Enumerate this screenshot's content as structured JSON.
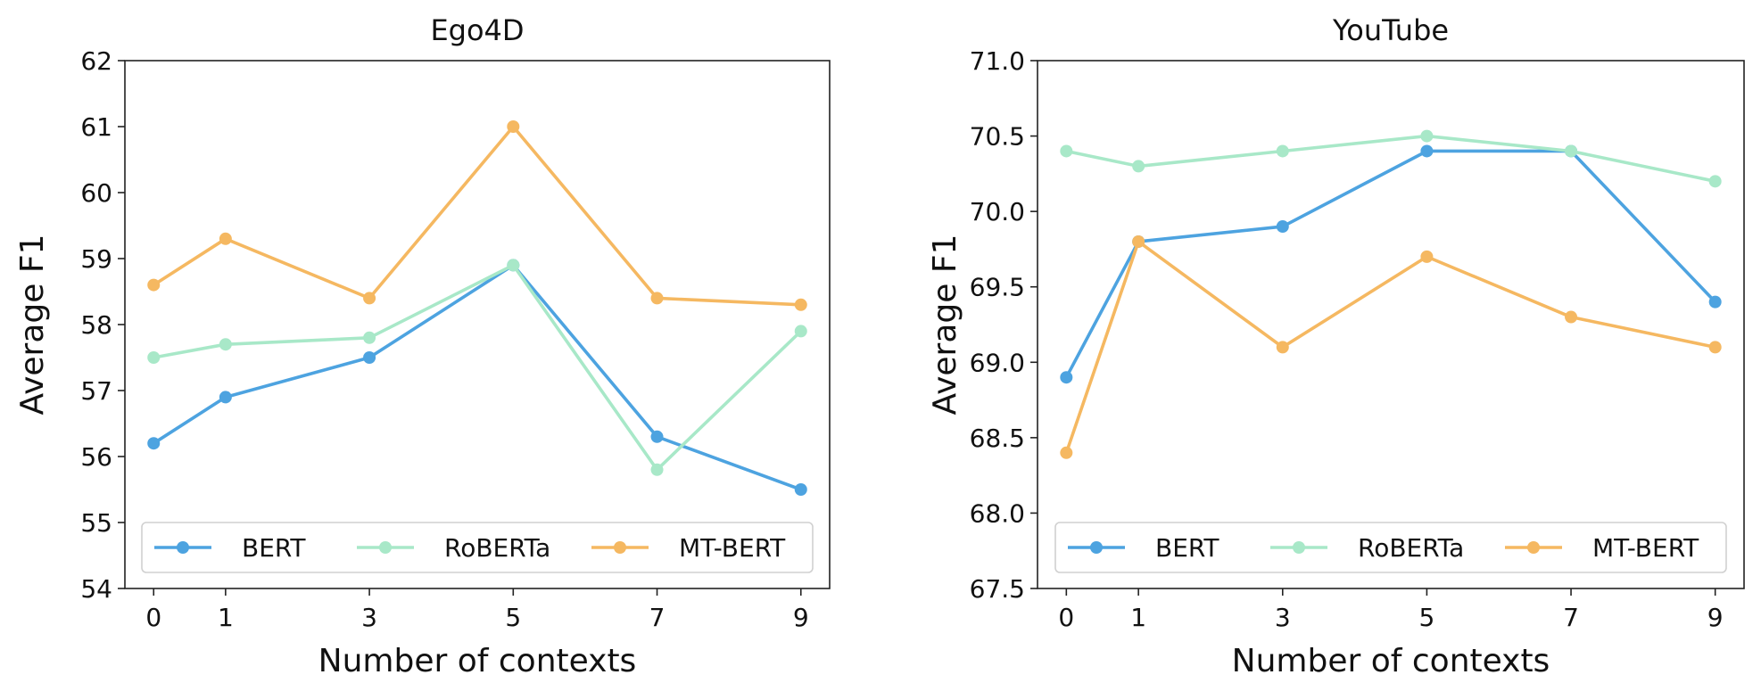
{
  "chart_data": [
    {
      "type": "line",
      "title": "Ego4D",
      "xlabel": "Number of contexts",
      "ylabel": "Average F1",
      "x": [
        0,
        1,
        3,
        5,
        7,
        9
      ],
      "xlim": [
        -0.4,
        9.4
      ],
      "ylim": [
        54,
        62
      ],
      "yticks": [
        54,
        55,
        56,
        57,
        58,
        59,
        60,
        61,
        62
      ],
      "ytick_labels": [
        "54",
        "55",
        "56",
        "57",
        "58",
        "59",
        "60",
        "61",
        "62"
      ],
      "grid": false,
      "legend_position": "lower-center",
      "series": [
        {
          "name": "BERT",
          "color": "#4da3e0",
          "values": [
            56.2,
            56.9,
            57.5,
            58.9,
            56.3,
            55.5
          ]
        },
        {
          "name": "RoBERTa",
          "color": "#a8e8c8",
          "values": [
            57.5,
            57.7,
            57.8,
            58.9,
            55.8,
            57.9
          ]
        },
        {
          "name": "MT-BERT",
          "color": "#f5b861",
          "values": [
            58.6,
            59.3,
            58.4,
            61.0,
            58.4,
            58.3
          ]
        }
      ]
    },
    {
      "type": "line",
      "title": "YouTube",
      "xlabel": "Number of contexts",
      "ylabel": "Average F1",
      "x": [
        0,
        1,
        3,
        5,
        7,
        9
      ],
      "xlim": [
        -0.4,
        9.4
      ],
      "ylim": [
        67.5,
        71.0
      ],
      "yticks": [
        67.5,
        68.0,
        68.5,
        69.0,
        69.5,
        70.0,
        70.5,
        71.0
      ],
      "ytick_labels": [
        "67.5",
        "68.0",
        "68.5",
        "69.0",
        "69.5",
        "70.0",
        "70.5",
        "71.0"
      ],
      "grid": false,
      "legend_position": "lower-center",
      "series": [
        {
          "name": "BERT",
          "color": "#4da3e0",
          "values": [
            68.9,
            69.8,
            69.9,
            70.4,
            70.4,
            69.4
          ]
        },
        {
          "name": "RoBERTa",
          "color": "#a8e8c8",
          "values": [
            70.4,
            70.3,
            70.4,
            70.5,
            70.4,
            70.2
          ]
        },
        {
          "name": "MT-BERT",
          "color": "#f5b861",
          "values": [
            68.4,
            69.8,
            69.1,
            69.7,
            69.3,
            69.1
          ]
        }
      ]
    }
  ]
}
